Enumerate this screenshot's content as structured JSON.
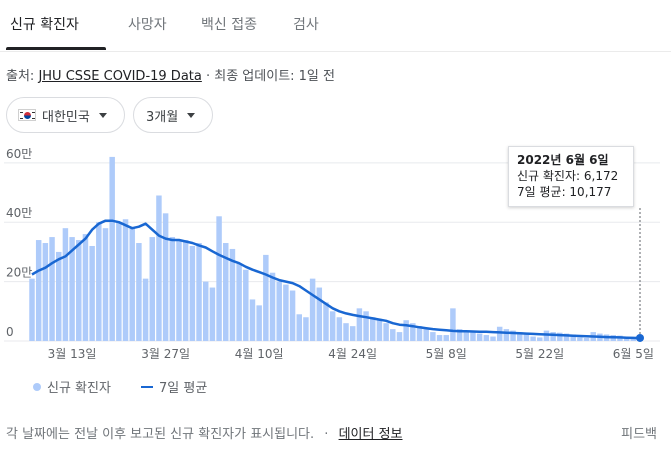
{
  "tabs": [
    {
      "label": "신규 확진자",
      "active": true
    },
    {
      "label": "사망자",
      "active": false
    },
    {
      "label": "백신 접종",
      "active": false
    },
    {
      "label": "검사",
      "active": false
    }
  ],
  "source": {
    "prefix": "출처: ",
    "link_text": "JHU CSSE COVID-19 Data",
    "suffix": " · 최종 업데이트: 1일 전"
  },
  "filters": {
    "country": "대한민국",
    "country_flag_icon": "south-korea-flag-icon",
    "period": "3개월"
  },
  "tooltip": {
    "date": "2022년 6월 6일",
    "new_cases_line": "신규 확진자: 6,172",
    "avg_line": "7일 평균: 10,177"
  },
  "legend": {
    "bars_label": "신규 확진자",
    "line_label": "7일 평균"
  },
  "footer": {
    "note": "각 날짜에는 전날 이후 보고된 신규 확진자가 표시됩니다.",
    "separator": "·",
    "link_text": "데이터 정보",
    "feedback": "피드백"
  },
  "colors": {
    "bar": "#aecbfa",
    "line": "#1967d2",
    "grid": "#e8eaed",
    "axis_text": "#5f6368"
  },
  "chart_data": {
    "type": "bar",
    "series": [
      {
        "name": "신규 확진자",
        "type": "bar"
      },
      {
        "name": "7일 평균",
        "type": "line"
      }
    ],
    "x_tick_labels": [
      "3월 13일",
      "3월 27일",
      "4월 10일",
      "4월 24일",
      "5월 8일",
      "5월 22일",
      "6월 5일"
    ],
    "x_tick_indices": [
      6,
      20,
      34,
      48,
      62,
      76,
      90
    ],
    "y_tick_labels": [
      "0",
      "20만",
      "40만",
      "60만"
    ],
    "y_tick_values": [
      0,
      200000,
      400000,
      600000
    ],
    "ylim": [
      0,
      650000
    ],
    "highlight_index": 91,
    "new_cases": [
      210000,
      340000,
      330000,
      350000,
      300000,
      380000,
      350000,
      340000,
      360000,
      320000,
      400000,
      380000,
      620000,
      400000,
      410000,
      380000,
      330000,
      210000,
      350000,
      490000,
      430000,
      350000,
      340000,
      340000,
      320000,
      330000,
      200000,
      180000,
      420000,
      330000,
      310000,
      260000,
      240000,
      140000,
      120000,
      290000,
      230000,
      200000,
      190000,
      170000,
      90000,
      80000,
      210000,
      180000,
      130000,
      100000,
      80000,
      60000,
      50000,
      110000,
      100000,
      80000,
      70000,
      60000,
      40000,
      30000,
      70000,
      60000,
      50000,
      40000,
      30000,
      20000,
      20000,
      110000,
      40000,
      35000,
      30000,
      25000,
      20000,
      15000,
      48000,
      40000,
      35000,
      30000,
      25000,
      15000,
      12000,
      35000,
      30000,
      28000,
      25000,
      22000,
      12000,
      10000,
      30000,
      25000,
      22000,
      20000,
      18000,
      10000,
      8000,
      6172
    ],
    "avg_7day": [
      224000,
      237000,
      247000,
      262000,
      275000,
      285000,
      305000,
      325000,
      345000,
      375000,
      395000,
      405000,
      405000,
      400000,
      390000,
      380000,
      385000,
      395000,
      375000,
      355000,
      345000,
      340000,
      340000,
      335000,
      330000,
      322000,
      315000,
      302000,
      290000,
      280000,
      270000,
      262000,
      250000,
      240000,
      232000,
      224000,
      214000,
      205000,
      200000,
      195000,
      185000,
      170000,
      155000,
      140000,
      125000,
      110000,
      100000,
      93000,
      88000,
      84000,
      80000,
      76000,
      72000,
      68000,
      60000,
      55000,
      53000,
      50000,
      46000,
      43000,
      40000,
      38000,
      36000,
      34000,
      33000,
      33000,
      32000,
      31000,
      31000,
      30000,
      29000,
      28000,
      27000,
      26000,
      25000,
      24000,
      23000,
      22000,
      21000,
      20000,
      19000,
      18000,
      17000,
      16000,
      15000,
      14000,
      13000,
      12500,
      12000,
      11000,
      10500,
      10177
    ]
  }
}
